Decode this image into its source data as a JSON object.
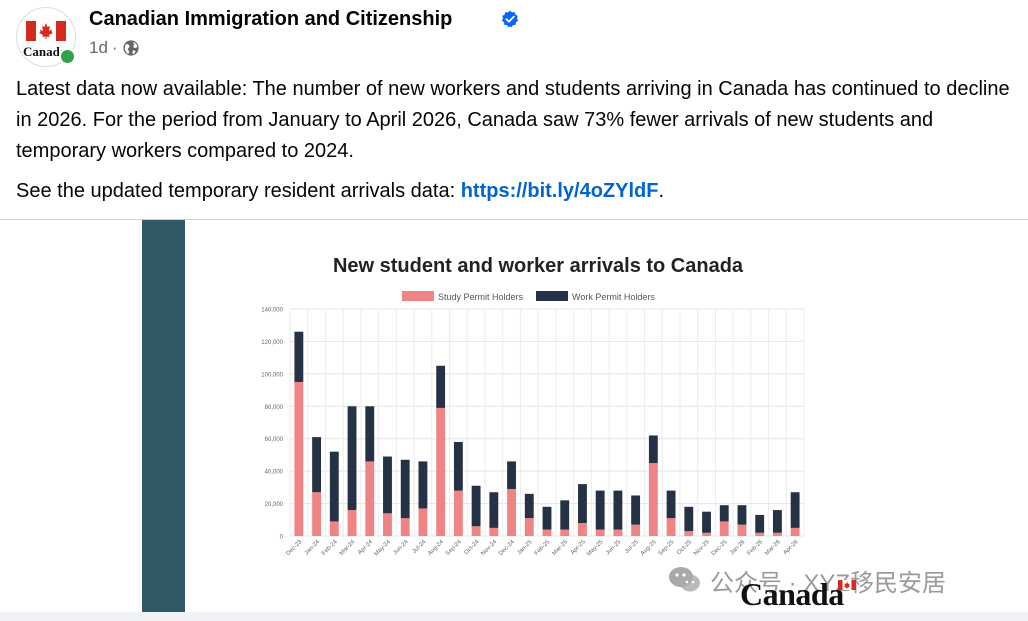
{
  "post": {
    "page_name": "Canadian Immigration and Citizenship",
    "avatar_wordmark": "Canada",
    "timestamp": "1d",
    "separator": "·",
    "text_p1": "Latest data now available: The number of new workers and students arriving in Canada has continued to decline in 2026. For the period from January to April 2026, Canada saw 73% fewer arrivals of new students and temporary workers compared to 2024.",
    "text_p2_prefix": "See the updated temporary resident arrivals data: ",
    "link_text": "https://bit.ly/4oZYldF",
    "text_p2_suffix": "."
  },
  "icons": {
    "verified": "verified-badge-icon",
    "audience": "globe-icon",
    "watermark": "wechat-icon"
  },
  "colors": {
    "accent_link": "#0064d1",
    "verified_blue": "#0866ff",
    "online_green": "#31a24c",
    "teal_bar": "#305965",
    "study_series": "#f08383",
    "work_series": "#253245"
  },
  "image": {
    "watermark_text": "公众号 · XYZ移民安居",
    "brand_wordmark": "Canada"
  },
  "chart_data": {
    "type": "bar",
    "stacked": true,
    "title": "New student and worker arrivals to Canada",
    "legend_position": "top",
    "grid": true,
    "ylim": [
      0,
      140000
    ],
    "yticks": [
      "0",
      "20,000",
      "40,000",
      "60,000",
      "80,000",
      "100,000",
      "120,000",
      "140,000"
    ],
    "categories": [
      "Dec-23",
      "Jan-24",
      "Feb-24",
      "Mar-24",
      "Apr-24",
      "May-24",
      "Jun-24",
      "Jul-24",
      "Aug-24",
      "Sep-24",
      "Oct-24",
      "Nov-24",
      "Dec-24",
      "Jan-25",
      "Feb-25",
      "Mar-25",
      "Apr-25",
      "May-25",
      "Jun-25",
      "Jul-25",
      "Aug-25",
      "Sep-25",
      "Oct-25",
      "Nov-25",
      "Dec-25",
      "Jan-26",
      "Feb-26",
      "Mar-26",
      "Apr-26"
    ],
    "series": [
      {
        "name": "Study Permit Holders",
        "values": [
          95000,
          27000,
          9000,
          16000,
          46000,
          14000,
          11000,
          17000,
          79000,
          28000,
          6000,
          5000,
          29000,
          11000,
          4000,
          4000,
          8000,
          4000,
          4000,
          7000,
          45000,
          11000,
          3000,
          2000,
          9000,
          7000,
          2000,
          2000,
          5000
        ]
      },
      {
        "name": "Work Permit Holders",
        "values": [
          31000,
          34000,
          43000,
          64000,
          34000,
          35000,
          36000,
          29000,
          26000,
          30000,
          25000,
          22000,
          17000,
          15000,
          14000,
          18000,
          24000,
          24000,
          24000,
          18000,
          17000,
          17000,
          15000,
          13000,
          10000,
          12000,
          11000,
          14000,
          22000
        ]
      }
    ]
  }
}
